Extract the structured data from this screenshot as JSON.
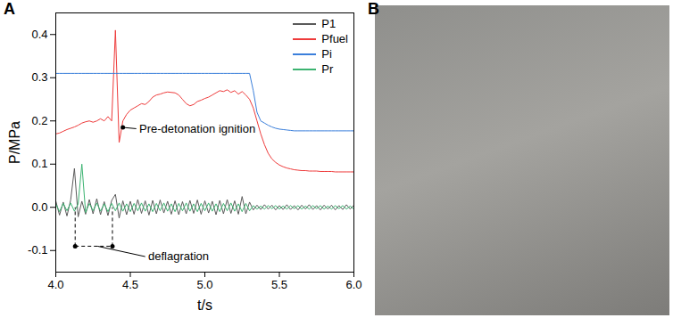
{
  "panel_labels": [
    "A",
    "B"
  ],
  "chart_data": {
    "type": "line",
    "x_label": "t/s",
    "y_label": "P/MPa",
    "xlim": [
      4,
      6
    ],
    "xticks": [
      {
        "value": 4,
        "label": "4.0"
      },
      {
        "value": 4.5,
        "label": "4.5"
      },
      {
        "value": 5,
        "label": "5.0"
      },
      {
        "value": 5.5,
        "label": "5.5"
      },
      {
        "value": 6,
        "label": "6.0"
      }
    ],
    "ylim": [
      -0.15,
      0.45
    ],
    "yticks": [
      {
        "value": -0.1,
        "label": "-0.1"
      },
      {
        "value": 0,
        "label": "0.0"
      },
      0.1,
      0.2,
      0.3,
      0.4
    ],
    "grid": false,
    "legend": "top-right",
    "x": [
      4,
      4.025,
      4.05,
      4.075,
      4.1,
      4.125,
      4.15,
      4.175,
      4.2,
      4.225,
      4.25,
      4.275,
      4.3,
      4.325,
      4.35,
      4.375,
      4.4,
      4.425,
      4.45,
      4.475,
      4.5,
      4.525,
      4.55,
      4.575,
      4.6,
      4.625,
      4.65,
      4.675,
      4.7,
      4.725,
      4.75,
      4.775,
      4.8,
      4.825,
      4.85,
      4.875,
      4.9,
      4.925,
      4.95,
      4.975,
      5,
      5.025,
      5.05,
      5.075,
      5.1,
      5.125,
      5.15,
      5.175,
      5.2,
      5.225,
      5.25,
      5.275,
      5.3,
      5.325,
      5.35,
      5.375,
      5.4,
      5.425,
      5.45,
      5.475,
      5.5,
      5.525,
      5.55,
      5.575,
      5.6,
      5.625,
      5.65,
      5.675,
      5.7,
      5.725,
      5.75,
      5.775,
      5.8,
      5.825,
      5.85,
      5.875,
      5.9,
      5.925,
      5.95,
      5.975,
      6
    ],
    "series": [
      {
        "name": "P1",
        "color": "#5a5a5a",
        "values": [
          0.015,
          -0.018,
          0.012,
          -0.02,
          0.017,
          0.09,
          -0.022,
          0.014,
          -0.016,
          0.018,
          -0.015,
          0.02,
          -0.017,
          0.013,
          -0.019,
          0.016,
          0.03,
          -0.025,
          0.015,
          -0.017,
          0.014,
          -0.016,
          0.018,
          -0.014,
          0.015,
          -0.018,
          0.016,
          -0.015,
          0.017,
          -0.013,
          0.014,
          -0.016,
          0.015,
          -0.017,
          0.013,
          -0.015,
          0.016,
          -0.014,
          0.017,
          -0.016,
          0.015,
          -0.013,
          0.014,
          -0.017,
          0.016,
          -0.015,
          0.018,
          -0.014,
          0.015,
          -0.016,
          0.025,
          -0.015,
          0.012,
          -0.006,
          0.005,
          -0.005,
          0.006,
          -0.004,
          0.005,
          -0.006,
          0.004,
          -0.005,
          0.006,
          -0.005,
          0.004,
          -0.006,
          0.005,
          -0.004,
          0.006,
          -0.005,
          0.004,
          -0.006,
          0.005,
          -0.004,
          0.005,
          -0.006,
          0.004,
          -0.005,
          0.006,
          -0.004,
          0.005
        ]
      },
      {
        "name": "Pfuel",
        "color": "#ee3b3b",
        "values": [
          0.17,
          0.172,
          0.176,
          0.18,
          0.183,
          0.186,
          0.19,
          0.195,
          0.198,
          0.2,
          0.197,
          0.2,
          0.205,
          0.2,
          0.21,
          0.2,
          0.41,
          0.15,
          0.2,
          0.215,
          0.225,
          0.23,
          0.235,
          0.24,
          0.238,
          0.245,
          0.255,
          0.26,
          0.262,
          0.265,
          0.267,
          0.266,
          0.265,
          0.26,
          0.25,
          0.24,
          0.235,
          0.238,
          0.245,
          0.248,
          0.252,
          0.255,
          0.26,
          0.265,
          0.27,
          0.268,
          0.272,
          0.266,
          0.27,
          0.262,
          0.268,
          0.26,
          0.25,
          0.23,
          0.2,
          0.17,
          0.145,
          0.125,
          0.112,
          0.104,
          0.098,
          0.094,
          0.091,
          0.089,
          0.087,
          0.086,
          0.085,
          0.085,
          0.084,
          0.084,
          0.084,
          0.083,
          0.083,
          0.083,
          0.083,
          0.082,
          0.082,
          0.082,
          0.082,
          0.082,
          0.082
        ]
      },
      {
        "name": "Pi",
        "color": "#3b7fdb",
        "values": [
          0.31,
          0.31,
          0.31,
          0.31,
          0.31,
          0.31,
          0.31,
          0.31,
          0.31,
          0.31,
          0.31,
          0.31,
          0.31,
          0.31,
          0.31,
          0.31,
          0.31,
          0.31,
          0.31,
          0.31,
          0.31,
          0.31,
          0.31,
          0.31,
          0.31,
          0.31,
          0.31,
          0.31,
          0.31,
          0.31,
          0.31,
          0.31,
          0.31,
          0.31,
          0.31,
          0.31,
          0.31,
          0.31,
          0.31,
          0.31,
          0.31,
          0.31,
          0.31,
          0.31,
          0.31,
          0.31,
          0.31,
          0.31,
          0.31,
          0.31,
          0.31,
          0.31,
          0.31,
          0.27,
          0.22,
          0.2,
          0.195,
          0.19,
          0.186,
          0.183,
          0.181,
          0.18,
          0.179,
          0.178,
          0.177,
          0.177,
          0.177,
          0.177,
          0.177,
          0.177,
          0.177,
          0.177,
          0.177,
          0.177,
          0.177,
          0.177,
          0.177,
          0.177,
          0.177,
          0.177,
          0.177
        ]
      },
      {
        "name": "Pr",
        "color": "#3cb371",
        "values": [
          0.008,
          -0.01,
          0.009,
          -0.008,
          0.01,
          -0.009,
          0.008,
          0.1,
          -0.012,
          0.009,
          -0.008,
          0.01,
          -0.009,
          0.008,
          -0.01,
          0.009,
          -0.008,
          0.01,
          -0.009,
          0.008,
          -0.01,
          0.009,
          -0.008,
          0.01,
          -0.009,
          0.008,
          -0.01,
          0.009,
          -0.008,
          0.01,
          -0.009,
          0.008,
          -0.01,
          0.009,
          -0.008,
          0.01,
          -0.009,
          0.008,
          -0.01,
          0.009,
          -0.008,
          0.01,
          -0.009,
          0.008,
          -0.01,
          0.009,
          -0.008,
          0.01,
          -0.009,
          0.008,
          -0.01,
          0.009,
          -0.008,
          0.004,
          -0.004,
          0.003,
          -0.004,
          0.004,
          -0.003,
          0.004,
          -0.004,
          0.003,
          -0.004,
          0.004,
          -0.003,
          0.004,
          -0.004,
          0.003,
          -0.004,
          0.004,
          -0.003,
          0.004,
          -0.004,
          0.003,
          -0.004,
          0.004,
          -0.003,
          0.004,
          -0.004,
          0.003,
          -0.004
        ]
      }
    ],
    "annotations": [
      {
        "text": "Pre-detonation ignition",
        "x": 4.45,
        "y": 0.185
      },
      {
        "text": "deflagration",
        "x": [
          4.13,
          4.38
        ],
        "y": -0.09
      }
    ]
  }
}
